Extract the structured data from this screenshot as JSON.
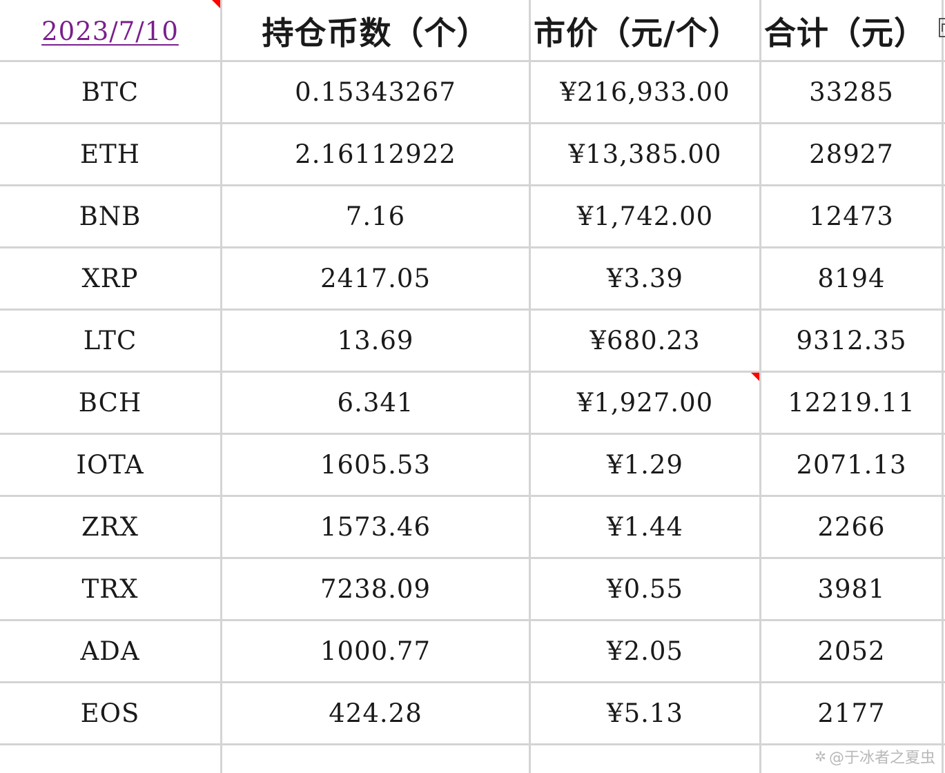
{
  "header": {
    "date": "2023/7/10",
    "col_holdings": "持仓币数（个）",
    "col_price": "市价（元/个）",
    "col_total": "合计（元）"
  },
  "rows": [
    {
      "coin": "BTC",
      "holdings": "0.15343267",
      "price": "¥216,933.00",
      "total": "33285"
    },
    {
      "coin": "ETH",
      "holdings": "2.16112922",
      "price": "¥13,385.00",
      "total": "28927"
    },
    {
      "coin": "BNB",
      "holdings": "7.16",
      "price": "¥1,742.00",
      "total": "12473"
    },
    {
      "coin": "XRP",
      "holdings": "2417.05",
      "price": "¥3.39",
      "total": "8194"
    },
    {
      "coin": "LTC",
      "holdings": "13.69",
      "price": "¥680.23",
      "total": "9312.35"
    },
    {
      "coin": "BCH",
      "holdings": "6.341",
      "price": "¥1,927.00",
      "total": "12219.11"
    },
    {
      "coin": "IOTA",
      "holdings": "1605.53",
      "price": "¥1.29",
      "total": "2071.13"
    },
    {
      "coin": "ZRX",
      "holdings": "1573.46",
      "price": "¥1.44",
      "total": "2266"
    },
    {
      "coin": "TRX",
      "holdings": "7238.09",
      "price": "¥0.55",
      "total": "3981"
    },
    {
      "coin": "ADA",
      "holdings": "1000.77",
      "price": "¥2.05",
      "total": "2052"
    },
    {
      "coin": "EOS",
      "holdings": "424.28",
      "price": "¥5.13",
      "total": "2177"
    }
  ],
  "watermark": "@于冰者之夏虫",
  "icons": {
    "watermark_icon": "weibo-logo-icon"
  },
  "colors": {
    "grid": "#d4d4d4",
    "date_link": "#7a1f8c",
    "comment_marker": "#ff0000"
  }
}
